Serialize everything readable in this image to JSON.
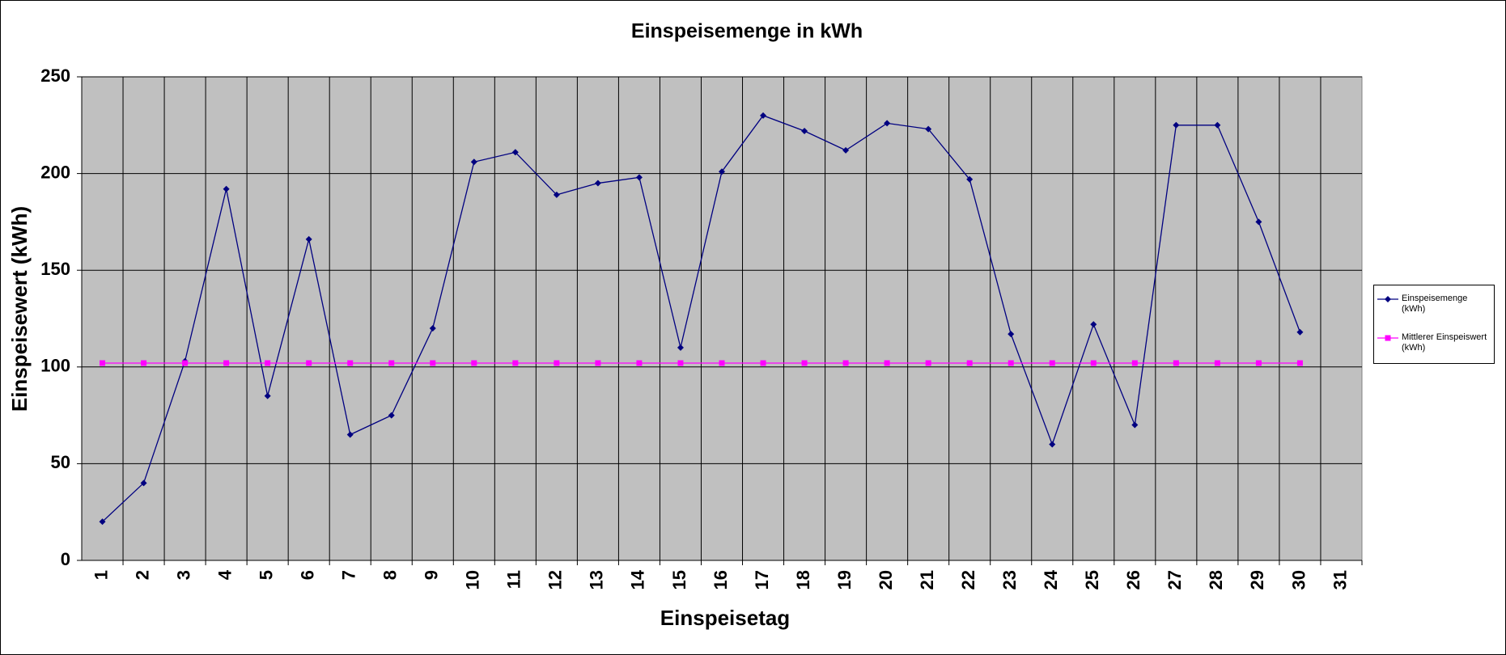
{
  "chart_data": {
    "type": "line",
    "title": "Einspeisemenge in kWh",
    "x_label": "Einspeisetag",
    "y_label": "Einspeisewert  (kWh)",
    "categories": [
      "1",
      "2",
      "3",
      "4",
      "5",
      "6",
      "7",
      "8",
      "9",
      "10",
      "11",
      "12",
      "13",
      "14",
      "15",
      "16",
      "17",
      "18",
      "19",
      "20",
      "21",
      "22",
      "23",
      "24",
      "25",
      "26",
      "27",
      "28",
      "29",
      "30",
      "31"
    ],
    "series": [
      {
        "name": "Einspeisemenge (kWh)",
        "color": "#000080",
        "marker": "diamond",
        "values": [
          20,
          40,
          103,
          192,
          85,
          166,
          65,
          75,
          120,
          206,
          211,
          189,
          195,
          198,
          110,
          201,
          230,
          222,
          212,
          226,
          223,
          197,
          117,
          60,
          122,
          70,
          225,
          225,
          175,
          118,
          null
        ]
      },
      {
        "name": "Mittlerer Einspeiswert (kWh)",
        "color": "#ff00ff",
        "marker": "square",
        "values": [
          102,
          102,
          102,
          102,
          102,
          102,
          102,
          102,
          102,
          102,
          102,
          102,
          102,
          102,
          102,
          102,
          102,
          102,
          102,
          102,
          102,
          102,
          102,
          102,
          102,
          102,
          102,
          102,
          102,
          102,
          null
        ]
      }
    ],
    "ylim": [
      0,
      250
    ],
    "yticks": [
      0,
      50,
      100,
      150,
      200,
      250
    ],
    "grid": true,
    "x_grid": true,
    "plot_background": "#c0c0c0",
    "legend": "right"
  }
}
